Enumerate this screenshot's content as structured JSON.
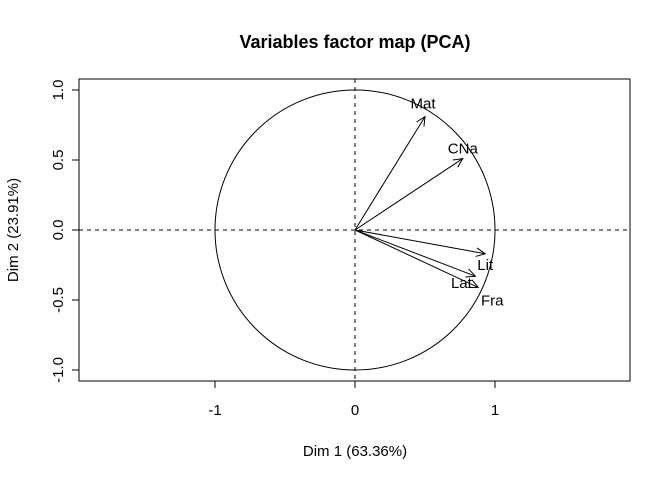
{
  "chart_data": {
    "type": "scatter",
    "title": "Variables factor map (PCA)",
    "xlabel": "Dim 1 (63.36%)",
    "ylabel": "Dim 2 (23.91%)",
    "xticks": [
      "-1",
      "0",
      "1"
    ],
    "yticks": [
      "-1.0",
      "-0.5",
      "0.0",
      "0.5",
      "1.0"
    ],
    "xlim": [
      -1.9,
      1.9
    ],
    "ylim": [
      -1.07,
      1.07
    ],
    "unit_circle": true,
    "reference_lines": {
      "x": 0,
      "y": 0,
      "style": "dashed"
    },
    "variables": [
      {
        "name": "Mat",
        "x": 0.5,
        "y": 0.81
      },
      {
        "name": "CNa",
        "x": 0.77,
        "y": 0.51
      },
      {
        "name": "Lit",
        "x": 0.93,
        "y": -0.17
      },
      {
        "name": "Lat",
        "x": 0.86,
        "y": -0.33
      },
      {
        "name": "Fra",
        "x": 0.88,
        "y": -0.41
      }
    ],
    "colors": {
      "line": "#000000",
      "background": "#ffffff"
    }
  }
}
